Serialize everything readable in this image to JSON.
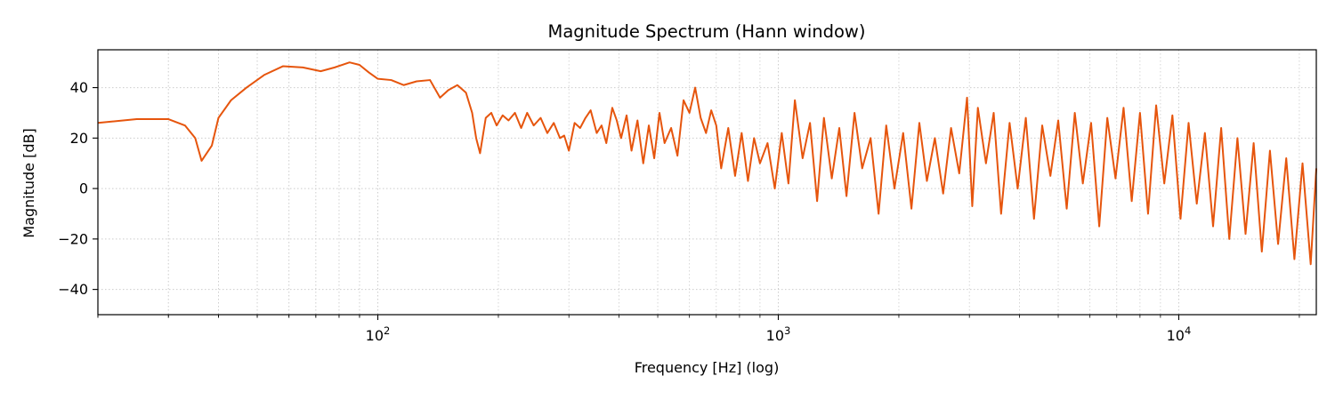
{
  "chart_data": {
    "type": "line",
    "title": "Magnitude Spectrum (Hann window)",
    "xlabel": "Frequency [Hz] (log)",
    "ylabel": "Magnitude [dB]",
    "x_scale": "log",
    "xlim": [
      20,
      22050
    ],
    "ylim": [
      -50,
      55
    ],
    "grid": true,
    "legend": "none",
    "x_major_ticks": [
      {
        "base": "10",
        "exp": "2",
        "value": 100
      },
      {
        "base": "10",
        "exp": "3",
        "value": 1000
      },
      {
        "base": "10",
        "exp": "4",
        "value": 10000
      }
    ],
    "y_ticks": [
      {
        "value": -40,
        "label": "−40"
      },
      {
        "value": -20,
        "label": "−20"
      },
      {
        "value": 0,
        "label": "0"
      },
      {
        "value": 20,
        "label": "20"
      },
      {
        "value": 40,
        "label": "40"
      }
    ],
    "series": [
      {
        "color": "#e6550d",
        "x": [
          20,
          25,
          30,
          33,
          35,
          36.3,
          38.5,
          40,
          43,
          47,
          52,
          58,
          65,
          72,
          78,
          85,
          90,
          95,
          100,
          108,
          116,
          125,
          135,
          143,
          150,
          158,
          166,
          172,
          176,
          180,
          186,
          192,
          198,
          205,
          212,
          220,
          228,
          236,
          245,
          255,
          265,
          275,
          285,
          292,
          300,
          310,
          320,
          330,
          340,
          352,
          362,
          372,
          385,
          395,
          405,
          418,
          430,
          445,
          460,
          475,
          490,
          505,
          520,
          540,
          560,
          580,
          600,
          620,
          640,
          660,
          680,
          700,
          720,
          750,
          780,
          810,
          840,
          870,
          900,
          940,
          980,
          1020,
          1060,
          1100,
          1150,
          1200,
          1250,
          1300,
          1360,
          1420,
          1480,
          1550,
          1620,
          1700,
          1780,
          1860,
          1950,
          2050,
          2150,
          2250,
          2350,
          2460,
          2580,
          2700,
          2830,
          2960,
          3050,
          3150,
          3300,
          3450,
          3600,
          3780,
          3960,
          4150,
          4350,
          4560,
          4780,
          5000,
          5250,
          5500,
          5760,
          6040,
          6330,
          6630,
          6950,
          7280,
          7630,
          8000,
          8380,
          8780,
          9200,
          9640,
          10100,
          10580,
          11090,
          11620,
          12180,
          12760,
          13370,
          14010,
          14680,
          15380,
          16120,
          16890,
          17700,
          18550,
          19440,
          20370,
          21350,
          22050
        ],
        "y": [
          26,
          27.5,
          27.5,
          25,
          20,
          11,
          17,
          28,
          35,
          40,
          45,
          48.5,
          48,
          46.5,
          48,
          50,
          49,
          46,
          43.5,
          43,
          41,
          42.5,
          43,
          36,
          39,
          41,
          38,
          30,
          20,
          14,
          28,
          30,
          25,
          29,
          27,
          30,
          24,
          30,
          25,
          28,
          22,
          26,
          20,
          21,
          15,
          26,
          24,
          28,
          31,
          22,
          25,
          18,
          32,
          27,
          20,
          29,
          15,
          27,
          10,
          25,
          12,
          30,
          18,
          24,
          13,
          35,
          30,
          40,
          28,
          22,
          31,
          25,
          8,
          24,
          5,
          22,
          3,
          20,
          10,
          18,
          0,
          22,
          2,
          35,
          12,
          26,
          -5,
          28,
          4,
          24,
          -3,
          30,
          8,
          20,
          -10,
          25,
          0,
          22,
          -8,
          26,
          3,
          20,
          -2,
          24,
          6,
          36,
          -7,
          32,
          10,
          30,
          -10,
          26,
          0,
          28,
          -12,
          25,
          5,
          27,
          -8,
          30,
          2,
          26,
          -15,
          28,
          4,
          32,
          -5,
          30,
          -10,
          33,
          2,
          29,
          -12,
          26,
          -6,
          22,
          -15,
          24,
          -20,
          20,
          -18,
          18,
          -25,
          15,
          -22,
          12,
          -28,
          10,
          -30,
          8
        ]
      }
    ]
  }
}
